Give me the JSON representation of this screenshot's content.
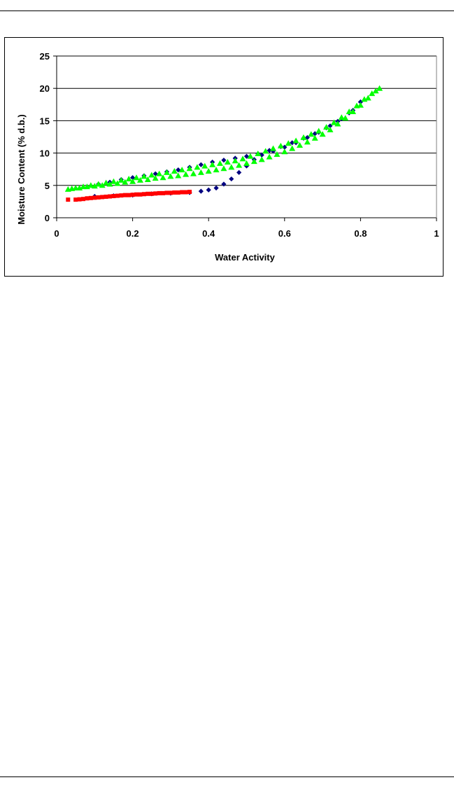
{
  "chart_data": {
    "type": "scatter",
    "title": "",
    "xlabel": "Water Activity",
    "ylabel": "Moisture Content (% d.b.)",
    "xlim": [
      0,
      1
    ],
    "ylim": [
      0,
      25
    ],
    "x_ticks": [
      "0",
      "0.2",
      "0.4",
      "0.6",
      "0.8",
      "1"
    ],
    "y_ticks": [
      "0",
      "5",
      "10",
      "15",
      "20",
      "25"
    ],
    "grid": "horizontal",
    "legend": "none",
    "series": [
      {
        "marker": "diamond",
        "color": "#000080",
        "points": [
          [
            0.1,
            3.3
          ],
          [
            0.15,
            3.4
          ],
          [
            0.2,
            3.5
          ],
          [
            0.25,
            3.7
          ],
          [
            0.3,
            3.8
          ],
          [
            0.35,
            3.9
          ],
          [
            0.38,
            4.1
          ],
          [
            0.4,
            4.3
          ],
          [
            0.42,
            4.6
          ],
          [
            0.44,
            5.2
          ],
          [
            0.46,
            6.0
          ],
          [
            0.48,
            7.0
          ],
          [
            0.5,
            8.0
          ],
          [
            0.52,
            9.0
          ],
          [
            0.54,
            9.7
          ],
          [
            0.57,
            10.3
          ],
          [
            0.6,
            10.9
          ],
          [
            0.63,
            11.6
          ],
          [
            0.66,
            12.4
          ],
          [
            0.69,
            13.2
          ],
          [
            0.72,
            14.2
          ],
          [
            0.75,
            15.3
          ],
          [
            0.78,
            16.6
          ],
          [
            0.8,
            17.9
          ],
          [
            0.8,
            17.9
          ],
          [
            0.77,
            16.2
          ],
          [
            0.74,
            14.9
          ],
          [
            0.71,
            13.9
          ],
          [
            0.68,
            13.0
          ],
          [
            0.65,
            12.3
          ],
          [
            0.62,
            11.6
          ],
          [
            0.59,
            11.0
          ],
          [
            0.56,
            10.4
          ],
          [
            0.53,
            9.9
          ],
          [
            0.5,
            9.5
          ],
          [
            0.47,
            9.2
          ],
          [
            0.44,
            8.9
          ],
          [
            0.41,
            8.6
          ],
          [
            0.38,
            8.2
          ],
          [
            0.35,
            7.8
          ],
          [
            0.32,
            7.4
          ],
          [
            0.29,
            7.1
          ],
          [
            0.26,
            6.8
          ],
          [
            0.23,
            6.5
          ],
          [
            0.2,
            6.2
          ],
          [
            0.17,
            5.9
          ],
          [
            0.14,
            5.5
          ],
          [
            0.11,
            5.2
          ]
        ]
      },
      {
        "marker": "square",
        "color": "#ff0000",
        "points": [
          [
            0.03,
            2.8
          ],
          [
            0.05,
            2.8
          ],
          [
            0.06,
            2.85
          ],
          [
            0.07,
            2.9
          ],
          [
            0.08,
            3.0
          ],
          [
            0.09,
            3.05
          ],
          [
            0.1,
            3.1
          ],
          [
            0.11,
            3.15
          ],
          [
            0.12,
            3.2
          ],
          [
            0.13,
            3.25
          ],
          [
            0.14,
            3.3
          ],
          [
            0.15,
            3.35
          ],
          [
            0.16,
            3.4
          ],
          [
            0.17,
            3.45
          ],
          [
            0.18,
            3.5
          ],
          [
            0.19,
            3.5
          ],
          [
            0.2,
            3.55
          ],
          [
            0.21,
            3.6
          ],
          [
            0.22,
            3.6
          ],
          [
            0.23,
            3.65
          ],
          [
            0.24,
            3.7
          ],
          [
            0.25,
            3.7
          ],
          [
            0.26,
            3.75
          ],
          [
            0.27,
            3.8
          ],
          [
            0.28,
            3.8
          ],
          [
            0.29,
            3.85
          ],
          [
            0.3,
            3.85
          ],
          [
            0.31,
            3.9
          ],
          [
            0.32,
            3.9
          ],
          [
            0.33,
            3.95
          ],
          [
            0.34,
            3.95
          ],
          [
            0.35,
            4.0
          ]
        ]
      },
      {
        "marker": "triangle",
        "color": "#00ff00",
        "points": [
          [
            0.03,
            4.4
          ],
          [
            0.05,
            4.6
          ],
          [
            0.07,
            4.8
          ],
          [
            0.09,
            5.0
          ],
          [
            0.11,
            5.2
          ],
          [
            0.13,
            5.4
          ],
          [
            0.15,
            5.6
          ],
          [
            0.17,
            5.8
          ],
          [
            0.19,
            6.0
          ],
          [
            0.21,
            6.2
          ],
          [
            0.23,
            6.4
          ],
          [
            0.25,
            6.6
          ],
          [
            0.27,
            6.8
          ],
          [
            0.29,
            7.0
          ],
          [
            0.31,
            7.2
          ],
          [
            0.33,
            7.4
          ],
          [
            0.35,
            7.6
          ],
          [
            0.37,
            7.8
          ],
          [
            0.39,
            8.0
          ],
          [
            0.41,
            8.2
          ],
          [
            0.43,
            8.4
          ],
          [
            0.45,
            8.6
          ],
          [
            0.47,
            8.8
          ],
          [
            0.49,
            9.1
          ],
          [
            0.51,
            9.5
          ],
          [
            0.53,
            9.9
          ],
          [
            0.55,
            10.3
          ],
          [
            0.57,
            10.7
          ],
          [
            0.59,
            11.1
          ],
          [
            0.61,
            11.5
          ],
          [
            0.63,
            11.9
          ],
          [
            0.65,
            12.4
          ],
          [
            0.67,
            12.9
          ],
          [
            0.69,
            13.4
          ],
          [
            0.71,
            14.0
          ],
          [
            0.73,
            14.7
          ],
          [
            0.75,
            15.5
          ],
          [
            0.77,
            16.4
          ],
          [
            0.79,
            17.3
          ],
          [
            0.81,
            18.3
          ],
          [
            0.83,
            19.2
          ],
          [
            0.85,
            20.0
          ],
          [
            0.84,
            19.6
          ],
          [
            0.82,
            18.5
          ],
          [
            0.8,
            17.4
          ],
          [
            0.78,
            16.4
          ],
          [
            0.76,
            15.4
          ],
          [
            0.74,
            14.5
          ],
          [
            0.72,
            13.6
          ],
          [
            0.7,
            12.9
          ],
          [
            0.68,
            12.3
          ],
          [
            0.66,
            11.7
          ],
          [
            0.64,
            11.2
          ],
          [
            0.62,
            10.7
          ],
          [
            0.6,
            10.2
          ],
          [
            0.58,
            9.8
          ],
          [
            0.56,
            9.4
          ],
          [
            0.54,
            9.0
          ],
          [
            0.52,
            8.7
          ],
          [
            0.5,
            8.4
          ],
          [
            0.48,
            8.1
          ],
          [
            0.46,
            7.8
          ],
          [
            0.44,
            7.6
          ],
          [
            0.42,
            7.4
          ],
          [
            0.4,
            7.2
          ],
          [
            0.38,
            7.0
          ],
          [
            0.36,
            6.8
          ],
          [
            0.34,
            6.7
          ],
          [
            0.32,
            6.5
          ],
          [
            0.3,
            6.4
          ],
          [
            0.28,
            6.2
          ],
          [
            0.26,
            6.1
          ],
          [
            0.24,
            5.9
          ],
          [
            0.22,
            5.8
          ],
          [
            0.2,
            5.6
          ],
          [
            0.18,
            5.5
          ],
          [
            0.16,
            5.3
          ],
          [
            0.14,
            5.2
          ],
          [
            0.12,
            5.0
          ],
          [
            0.1,
            4.9
          ],
          [
            0.08,
            4.8
          ],
          [
            0.06,
            4.6
          ],
          [
            0.04,
            4.5
          ]
        ]
      }
    ]
  }
}
